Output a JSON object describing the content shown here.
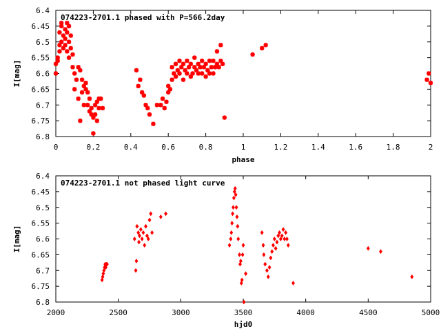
{
  "colors": {
    "points": "#ff0000",
    "axes": "#000000",
    "background": "#ffffff"
  },
  "chart_data": [
    {
      "type": "scatter",
      "title": "074223-2701.1 phased with P=566.2day",
      "xlabel": "phase",
      "ylabel": "I[mag]",
      "xlim": [
        0,
        2
      ],
      "ylim": [
        6.4,
        6.8
      ],
      "y_inverted": true,
      "grid": false,
      "marker": "star",
      "x_ticks": [
        0,
        0.2,
        0.4,
        0.6,
        0.8,
        1,
        1.2,
        1.4,
        1.6,
        1.8,
        2
      ],
      "x_tick_labels": [
        "0",
        "0.2",
        "0.4",
        "0.6",
        "0.8",
        "1",
        "1.2",
        "1.4",
        "1.6",
        "1.8",
        "2"
      ],
      "y_ticks": [
        6.4,
        6.45,
        6.5,
        6.55,
        6.6,
        6.65,
        6.7,
        6.75,
        6.8
      ],
      "y_tick_labels": [
        "6.4",
        "6.45",
        "6.5",
        "6.55",
        "6.6",
        "6.65",
        "6.7",
        "6.75",
        "6.8"
      ],
      "points": [
        [
          0.0,
          6.57
        ],
        [
          0.0,
          6.6
        ],
        [
          0.01,
          6.56
        ],
        [
          0.01,
          6.55
        ],
        [
          0.02,
          6.53
        ],
        [
          0.02,
          6.51
        ],
        [
          0.02,
          6.47
        ],
        [
          0.03,
          6.44
        ],
        [
          0.03,
          6.45
        ],
        [
          0.03,
          6.5
        ],
        [
          0.04,
          6.48
        ],
        [
          0.04,
          6.52
        ],
        [
          0.05,
          6.46
        ],
        [
          0.05,
          6.49
        ],
        [
          0.05,
          6.51
        ],
        [
          0.06,
          6.44
        ],
        [
          0.06,
          6.47
        ],
        [
          0.06,
          6.53
        ],
        [
          0.07,
          6.45
        ],
        [
          0.07,
          6.5
        ],
        [
          0.07,
          6.55
        ],
        [
          0.08,
          6.48
        ],
        [
          0.08,
          6.52
        ],
        [
          0.09,
          6.54
        ],
        [
          0.09,
          6.58
        ],
        [
          0.1,
          6.6
        ],
        [
          0.1,
          6.65
        ],
        [
          0.11,
          6.62
        ],
        [
          0.12,
          6.68
        ],
        [
          0.12,
          6.58
        ],
        [
          0.13,
          6.59
        ],
        [
          0.13,
          6.75
        ],
        [
          0.14,
          6.62
        ],
        [
          0.14,
          6.66
        ],
        [
          0.15,
          6.64
        ],
        [
          0.15,
          6.7
        ],
        [
          0.16,
          6.65
        ],
        [
          0.16,
          6.63
        ],
        [
          0.17,
          6.66
        ],
        [
          0.17,
          6.7
        ],
        [
          0.18,
          6.72
        ],
        [
          0.18,
          6.68
        ],
        [
          0.19,
          6.71
        ],
        [
          0.19,
          6.73
        ],
        [
          0.2,
          6.74
        ],
        [
          0.2,
          6.79
        ],
        [
          0.21,
          6.7
        ],
        [
          0.21,
          6.73
        ],
        [
          0.22,
          6.69
        ],
        [
          0.22,
          6.75
        ],
        [
          0.23,
          6.68
        ],
        [
          0.23,
          6.71
        ],
        [
          0.24,
          6.68
        ],
        [
          0.25,
          6.71
        ],
        [
          0.43,
          6.59
        ],
        [
          0.44,
          6.64
        ],
        [
          0.45,
          6.62
        ],
        [
          0.46,
          6.66
        ],
        [
          0.47,
          6.67
        ],
        [
          0.48,
          6.7
        ],
        [
          0.49,
          6.71
        ],
        [
          0.5,
          6.73
        ],
        [
          0.52,
          6.76
        ],
        [
          0.54,
          6.7
        ],
        [
          0.56,
          6.7
        ],
        [
          0.57,
          6.68
        ],
        [
          0.58,
          6.71
        ],
        [
          0.59,
          6.69
        ],
        [
          0.6,
          6.66
        ],
        [
          0.6,
          6.64
        ],
        [
          0.61,
          6.65
        ],
        [
          0.62,
          6.62
        ],
        [
          0.62,
          6.58
        ],
        [
          0.63,
          6.6
        ],
        [
          0.64,
          6.61
        ],
        [
          0.64,
          6.57
        ],
        [
          0.65,
          6.59
        ],
        [
          0.66,
          6.56
        ],
        [
          0.66,
          6.6
        ],
        [
          0.67,
          6.58
        ],
        [
          0.68,
          6.62
        ],
        [
          0.68,
          6.57
        ],
        [
          0.69,
          6.59
        ],
        [
          0.7,
          6.6
        ],
        [
          0.7,
          6.56
        ],
        [
          0.71,
          6.58
        ],
        [
          0.72,
          6.61
        ],
        [
          0.72,
          6.57
        ],
        [
          0.73,
          6.6
        ],
        [
          0.74,
          6.58
        ],
        [
          0.74,
          6.55
        ],
        [
          0.75,
          6.59
        ],
        [
          0.76,
          6.57
        ],
        [
          0.76,
          6.6
        ],
        [
          0.77,
          6.58
        ],
        [
          0.78,
          6.56
        ],
        [
          0.78,
          6.6
        ],
        [
          0.79,
          6.58
        ],
        [
          0.8,
          6.57
        ],
        [
          0.8,
          6.61
        ],
        [
          0.81,
          6.59
        ],
        [
          0.82,
          6.56
        ],
        [
          0.82,
          6.6
        ],
        [
          0.83,
          6.58
        ],
        [
          0.84,
          6.6
        ],
        [
          0.84,
          6.56
        ],
        [
          0.85,
          6.58
        ],
        [
          0.86,
          6.57
        ],
        [
          0.86,
          6.53
        ],
        [
          0.87,
          6.58
        ],
        [
          0.88,
          6.56
        ],
        [
          0.88,
          6.51
        ],
        [
          0.89,
          6.57
        ],
        [
          0.9,
          6.74
        ],
        [
          1.05,
          6.54
        ],
        [
          1.1,
          6.52
        ],
        [
          1.12,
          6.51
        ],
        [
          1.98,
          6.62
        ],
        [
          1.99,
          6.6
        ],
        [
          2.0,
          6.63
        ]
      ]
    },
    {
      "type": "scatter",
      "title": "074223-2701.1 not phased light curve",
      "xlabel": "hjd0",
      "ylabel": "I[mag]",
      "xlim": [
        2000,
        5000
      ],
      "ylim": [
        6.4,
        6.8
      ],
      "y_inverted": true,
      "grid": false,
      "marker": "diamond",
      "x_ticks": [
        2000,
        2500,
        3000,
        3500,
        4000,
        4500,
        5000
      ],
      "x_tick_labels": [
        "2000",
        "2500",
        "3000",
        "3500",
        "4000",
        "4500",
        "5000"
      ],
      "y_ticks": [
        6.4,
        6.45,
        6.5,
        6.55,
        6.6,
        6.65,
        6.7,
        6.75,
        6.8
      ],
      "y_tick_labels": [
        "6.4",
        "6.45",
        "6.5",
        "6.55",
        "6.6",
        "6.65",
        "6.7",
        "6.75",
        "6.8"
      ],
      "points": [
        [
          2370,
          6.73
        ],
        [
          2375,
          6.72
        ],
        [
          2380,
          6.71
        ],
        [
          2385,
          6.7
        ],
        [
          2390,
          6.69
        ],
        [
          2395,
          6.68
        ],
        [
          2400,
          6.69
        ],
        [
          2405,
          6.68
        ],
        [
          2410,
          6.68
        ],
        [
          2630,
          6.6
        ],
        [
          2640,
          6.7
        ],
        [
          2645,
          6.67
        ],
        [
          2650,
          6.56
        ],
        [
          2660,
          6.58
        ],
        [
          2665,
          6.61
        ],
        [
          2670,
          6.59
        ],
        [
          2680,
          6.57
        ],
        [
          2690,
          6.6
        ],
        [
          2700,
          6.58
        ],
        [
          2710,
          6.62
        ],
        [
          2720,
          6.56
        ],
        [
          2730,
          6.59
        ],
        [
          2740,
          6.6
        ],
        [
          2750,
          6.54
        ],
        [
          2760,
          6.52
        ],
        [
          2770,
          6.58
        ],
        [
          2840,
          6.53
        ],
        [
          2880,
          6.52
        ],
        [
          3390,
          6.62
        ],
        [
          3400,
          6.6
        ],
        [
          3405,
          6.58
        ],
        [
          3410,
          6.55
        ],
        [
          3415,
          6.52
        ],
        [
          3420,
          6.5
        ],
        [
          3425,
          6.47
        ],
        [
          3430,
          6.45
        ],
        [
          3435,
          6.44
        ],
        [
          3440,
          6.46
        ],
        [
          3445,
          6.5
        ],
        [
          3450,
          6.53
        ],
        [
          3455,
          6.56
        ],
        [
          3460,
          6.6
        ],
        [
          3470,
          6.65
        ],
        [
          3475,
          6.68
        ],
        [
          3480,
          6.67
        ],
        [
          3485,
          6.74
        ],
        [
          3490,
          6.73
        ],
        [
          3495,
          6.65
        ],
        [
          3500,
          6.62
        ],
        [
          3505,
          6.8
        ],
        [
          3520,
          6.71
        ],
        [
          3650,
          6.58
        ],
        [
          3660,
          6.62
        ],
        [
          3665,
          6.65
        ],
        [
          3675,
          6.68
        ],
        [
          3690,
          6.7
        ],
        [
          3700,
          6.72
        ],
        [
          3710,
          6.69
        ],
        [
          3720,
          6.66
        ],
        [
          3730,
          6.64
        ],
        [
          3740,
          6.62
        ],
        [
          3750,
          6.6
        ],
        [
          3760,
          6.63
        ],
        [
          3770,
          6.61
        ],
        [
          3780,
          6.59
        ],
        [
          3790,
          6.58
        ],
        [
          3800,
          6.6
        ],
        [
          3810,
          6.59
        ],
        [
          3820,
          6.57
        ],
        [
          3830,
          6.6
        ],
        [
          3840,
          6.58
        ],
        [
          3850,
          6.6
        ],
        [
          3860,
          6.62
        ],
        [
          3900,
          6.74
        ],
        [
          4500,
          6.63
        ],
        [
          4600,
          6.64
        ],
        [
          4850,
          6.72
        ]
      ]
    }
  ]
}
